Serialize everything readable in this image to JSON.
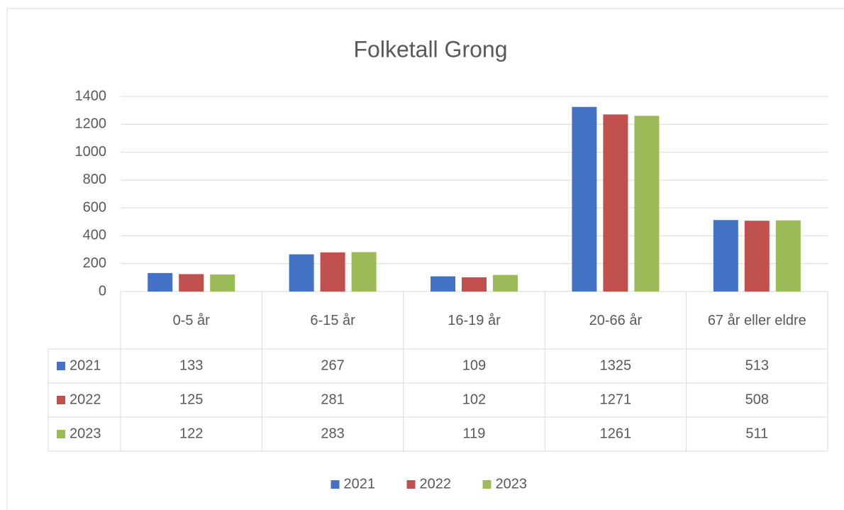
{
  "chart_data": {
    "type": "bar",
    "title": "Folketall Grong",
    "categories": [
      "0-5 år",
      "6-15 år",
      "16-19 år",
      "20-66 år",
      "67 år eller eldre"
    ],
    "series": [
      {
        "name": "2021",
        "color": "#4472c4",
        "values": [
          133,
          267,
          109,
          1325,
          513
        ]
      },
      {
        "name": "2022",
        "color": "#c0504d",
        "values": [
          125,
          281,
          102,
          1271,
          508
        ]
      },
      {
        "name": "2023",
        "color": "#9bbb59",
        "values": [
          122,
          283,
          119,
          1261,
          511
        ]
      }
    ],
    "ylim": [
      0,
      1400
    ],
    "yticks": [
      0,
      200,
      400,
      600,
      800,
      1000,
      1200,
      1400
    ],
    "grid": true,
    "legend": "bottom",
    "data_table": true
  }
}
